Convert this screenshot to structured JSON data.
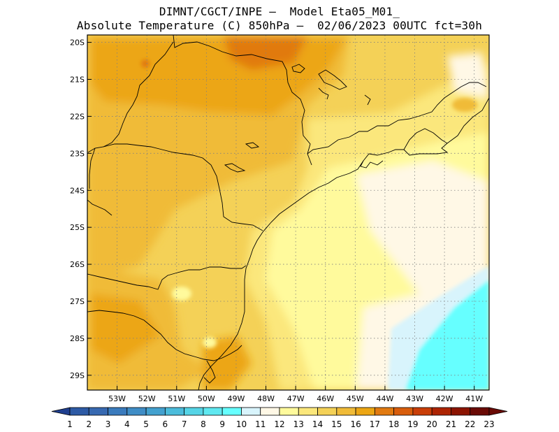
{
  "header": {
    "line1": "DIMNT/CGCT/INPE –  Model Eta05_M01_",
    "line2": "Absolute Temperature (C) 850hPa –  02/06/2023 00UTC fct=30h"
  },
  "map": {
    "lon_range": [
      -54.0,
      -40.5
    ],
    "lat_range": [
      -29.4,
      -19.8
    ],
    "lon_ticks": [
      "53W",
      "52W",
      "51W",
      "50W",
      "49W",
      "48W",
      "47W",
      "46W",
      "45W",
      "44W",
      "43W",
      "42W",
      "41W"
    ],
    "lat_ticks": [
      "20S",
      "21S",
      "22S",
      "23S",
      "24S",
      "25S",
      "26S",
      "27S",
      "28S",
      "29S"
    ],
    "grid": "dotted"
  },
  "colorbar": {
    "labels": [
      "1",
      "2",
      "3",
      "4",
      "5",
      "6",
      "7",
      "8",
      "9",
      "10",
      "11",
      "12",
      "13",
      "14",
      "15",
      "16",
      "17",
      "18",
      "19",
      "20",
      "21",
      "22",
      "23"
    ],
    "colors": [
      "#1f3f8f",
      "#2d5aa5",
      "#3769b1",
      "#3a7bbd",
      "#3f8dc6",
      "#43a1cf",
      "#4bbcdb",
      "#55d4e6",
      "#5fe8f0",
      "#66ffff",
      "#d8f4fc",
      "#fff8e6",
      "#fffa9c",
      "#fbe77b",
      "#f4d157",
      "#f0bb38",
      "#eca614",
      "#e17a11",
      "#d85d0c",
      "#c93e08",
      "#ad2403",
      "#8c1402",
      "#6a0a05"
    ]
  },
  "colors": {
    "frame": "#000000",
    "grid": "#808080"
  }
}
